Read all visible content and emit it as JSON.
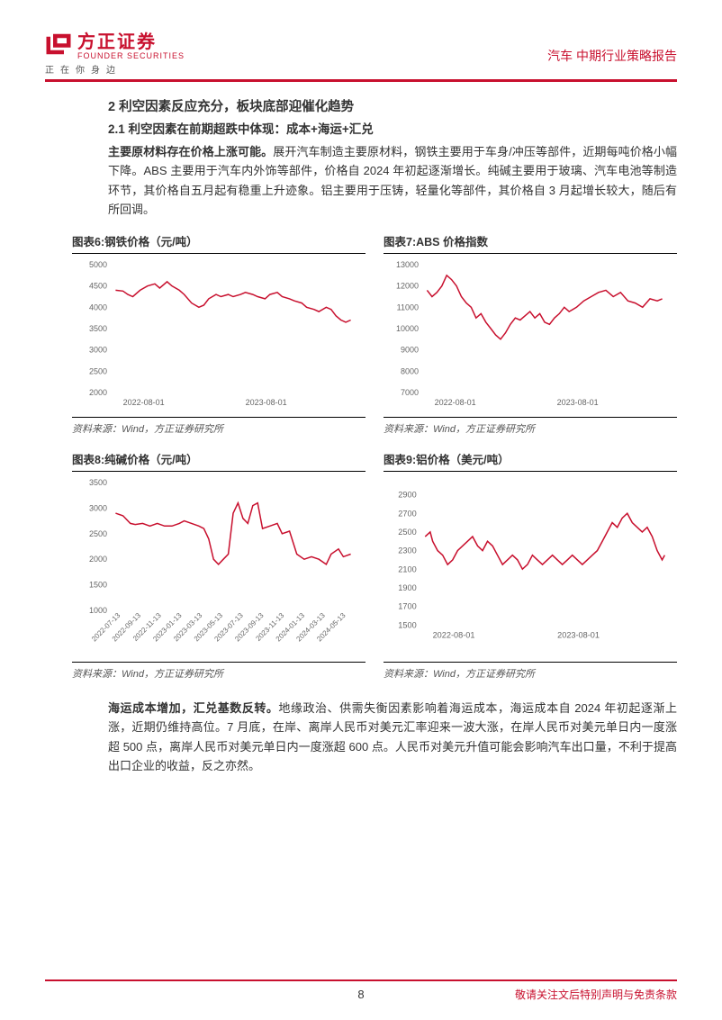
{
  "logo": {
    "cn": "方正证券",
    "en": "FOUNDER SECURITIES",
    "slogan": "正在你身边",
    "mark_color": "#c8102e"
  },
  "header_right": "汽车  中期行业策略报告",
  "section_title": "2 利空因素反应充分，板块底部迎催化趋势",
  "subsection_title": "2.1 利空因素在前期超跌中体现：成本+海运+汇兑",
  "paragraph1_bold": "主要原材料存在价格上涨可能。",
  "paragraph1_rest": "展开汽车制造主要原材料，钢铁主要用于车身/冲压等部件，近期每吨价格小幅下降。ABS 主要用于汽车内外饰等部件，价格自 2024 年初起逐渐增长。纯碱主要用于玻璃、汽车电池等制造环节，其价格自五月起有稳重上升迹象。铝主要用于压铸，轻量化等部件，其价格自 3 月起增长较大，随后有所回调。",
  "paragraph2_bold": "海运成本增加，汇兑基数反转。",
  "paragraph2_rest": "地缘政治、供需失衡因素影响着海运成本，海运成本自 2024 年初起逐渐上涨，近期仍维持高位。7 月底，在岸、离岸人民币对美元汇率迎来一波大涨，在岸人民币对美元单日内一度涨超 500 点，离岸人民币对美元单日内一度涨超 600 点。人民币对美元升值可能会影响汽车出口量，不利于提高出口企业的收益，反之亦然。",
  "source_text": "资料来源：Wind，方正证券研究所",
  "page_number": "8",
  "footer_disclaimer": "敬请关注文后特别声明与免责条款",
  "chart6": {
    "title": "图表6:钢铁价格（元/吨）",
    "type": "line",
    "line_color": "#c8102e",
    "background_color": "#ffffff",
    "ylim": [
      2000,
      5000
    ],
    "ytick_step": 500,
    "yticks": [
      2000,
      2500,
      3000,
      3500,
      4000,
      4500,
      5000
    ],
    "xticks": [
      "2022-08-01",
      "2023-08-01"
    ],
    "xtick_positions": [
      0.05,
      0.55
    ],
    "line_width": 1.5,
    "data": [
      [
        0.02,
        4400
      ],
      [
        0.05,
        4380
      ],
      [
        0.07,
        4300
      ],
      [
        0.09,
        4250
      ],
      [
        0.12,
        4400
      ],
      [
        0.15,
        4500
      ],
      [
        0.18,
        4550
      ],
      [
        0.2,
        4450
      ],
      [
        0.23,
        4600
      ],
      [
        0.25,
        4500
      ],
      [
        0.28,
        4400
      ],
      [
        0.3,
        4300
      ],
      [
        0.33,
        4100
      ],
      [
        0.36,
        4000
      ],
      [
        0.38,
        4050
      ],
      [
        0.4,
        4200
      ],
      [
        0.43,
        4300
      ],
      [
        0.45,
        4250
      ],
      [
        0.48,
        4300
      ],
      [
        0.5,
        4250
      ],
      [
        0.53,
        4300
      ],
      [
        0.55,
        4350
      ],
      [
        0.58,
        4300
      ],
      [
        0.6,
        4250
      ],
      [
        0.63,
        4200
      ],
      [
        0.65,
        4300
      ],
      [
        0.68,
        4350
      ],
      [
        0.7,
        4250
      ],
      [
        0.73,
        4200
      ],
      [
        0.75,
        4150
      ],
      [
        0.78,
        4100
      ],
      [
        0.8,
        4000
      ],
      [
        0.83,
        3950
      ],
      [
        0.85,
        3900
      ],
      [
        0.88,
        4000
      ],
      [
        0.9,
        3950
      ],
      [
        0.92,
        3800
      ],
      [
        0.94,
        3700
      ],
      [
        0.96,
        3650
      ],
      [
        0.98,
        3700
      ]
    ]
  },
  "chart7": {
    "title": "图表7:ABS 价格指数",
    "type": "line",
    "line_color": "#c8102e",
    "background_color": "#ffffff",
    "ylim": [
      7000,
      13000
    ],
    "ytick_step": 1000,
    "yticks": [
      7000,
      8000,
      9000,
      10000,
      11000,
      12000,
      13000
    ],
    "xticks": [
      "2022-08-01",
      "2023-08-01"
    ],
    "xtick_positions": [
      0.05,
      0.55
    ],
    "line_width": 1.5,
    "data": [
      [
        0.02,
        11800
      ],
      [
        0.04,
        11500
      ],
      [
        0.06,
        11700
      ],
      [
        0.08,
        12000
      ],
      [
        0.1,
        12500
      ],
      [
        0.12,
        12300
      ],
      [
        0.14,
        12000
      ],
      [
        0.16,
        11500
      ],
      [
        0.18,
        11200
      ],
      [
        0.2,
        11000
      ],
      [
        0.22,
        10500
      ],
      [
        0.24,
        10700
      ],
      [
        0.26,
        10300
      ],
      [
        0.28,
        10000
      ],
      [
        0.3,
        9700
      ],
      [
        0.32,
        9500
      ],
      [
        0.34,
        9800
      ],
      [
        0.36,
        10200
      ],
      [
        0.38,
        10500
      ],
      [
        0.4,
        10400
      ],
      [
        0.42,
        10600
      ],
      [
        0.44,
        10800
      ],
      [
        0.46,
        10500
      ],
      [
        0.48,
        10700
      ],
      [
        0.5,
        10300
      ],
      [
        0.52,
        10200
      ],
      [
        0.54,
        10500
      ],
      [
        0.56,
        10700
      ],
      [
        0.58,
        11000
      ],
      [
        0.6,
        10800
      ],
      [
        0.63,
        11000
      ],
      [
        0.66,
        11300
      ],
      [
        0.69,
        11500
      ],
      [
        0.72,
        11700
      ],
      [
        0.75,
        11800
      ],
      [
        0.78,
        11500
      ],
      [
        0.81,
        11700
      ],
      [
        0.84,
        11300
      ],
      [
        0.87,
        11200
      ],
      [
        0.9,
        11000
      ],
      [
        0.93,
        11400
      ],
      [
        0.96,
        11300
      ],
      [
        0.98,
        11400
      ]
    ]
  },
  "chart8": {
    "title": "图表8:纯碱价格（元/吨）",
    "type": "line",
    "line_color": "#c8102e",
    "background_color": "#ffffff",
    "ylim": [
      1000,
      3500
    ],
    "ytick_step": 500,
    "yticks": [
      1000,
      1500,
      2000,
      2500,
      3000,
      3500
    ],
    "xticks": [
      "2022-07-13",
      "2022-09-13",
      "2022-11-13",
      "2023-01-13",
      "2023-03-13",
      "2023-05-13",
      "2023-07-13",
      "2023-09-13",
      "2023-11-13",
      "2024-01-13",
      "2024-03-13",
      "2024-05-13"
    ],
    "line_width": 1.5,
    "data": [
      [
        0.02,
        2900
      ],
      [
        0.05,
        2850
      ],
      [
        0.08,
        2700
      ],
      [
        0.1,
        2680
      ],
      [
        0.13,
        2700
      ],
      [
        0.16,
        2650
      ],
      [
        0.19,
        2700
      ],
      [
        0.22,
        2650
      ],
      [
        0.25,
        2650
      ],
      [
        0.28,
        2700
      ],
      [
        0.3,
        2750
      ],
      [
        0.33,
        2700
      ],
      [
        0.36,
        2650
      ],
      [
        0.38,
        2600
      ],
      [
        0.4,
        2400
      ],
      [
        0.42,
        2000
      ],
      [
        0.44,
        1900
      ],
      [
        0.46,
        2000
      ],
      [
        0.48,
        2100
      ],
      [
        0.5,
        2900
      ],
      [
        0.52,
        3100
      ],
      [
        0.54,
        2800
      ],
      [
        0.56,
        2700
      ],
      [
        0.58,
        3050
      ],
      [
        0.6,
        3100
      ],
      [
        0.62,
        2600
      ],
      [
        0.65,
        2650
      ],
      [
        0.68,
        2700
      ],
      [
        0.7,
        2500
      ],
      [
        0.73,
        2550
      ],
      [
        0.76,
        2100
      ],
      [
        0.79,
        2000
      ],
      [
        0.82,
        2050
      ],
      [
        0.85,
        2000
      ],
      [
        0.88,
        1900
      ],
      [
        0.9,
        2100
      ],
      [
        0.93,
        2200
      ],
      [
        0.95,
        2050
      ],
      [
        0.98,
        2100
      ]
    ]
  },
  "chart9": {
    "title": "图表9:铝价格（美元/吨）",
    "type": "line",
    "line_color": "#c8102e",
    "background_color": "#ffffff",
    "ylim": [
      1500,
      2900
    ],
    "ytick_step": 200,
    "yticks": [
      1500,
      1700,
      1900,
      2100,
      2300,
      2500,
      2700,
      2900
    ],
    "xticks": [
      "2022-08-01",
      "2023-08-01"
    ],
    "xtick_positions": [
      0.05,
      0.55
    ],
    "line_width": 1.5,
    "data": [
      [
        0.02,
        2450
      ],
      [
        0.04,
        2500
      ],
      [
        0.05,
        2400
      ],
      [
        0.07,
        2300
      ],
      [
        0.09,
        2250
      ],
      [
        0.11,
        2150
      ],
      [
        0.13,
        2200
      ],
      [
        0.15,
        2300
      ],
      [
        0.17,
        2350
      ],
      [
        0.19,
        2400
      ],
      [
        0.21,
        2450
      ],
      [
        0.23,
        2350
      ],
      [
        0.25,
        2300
      ],
      [
        0.27,
        2400
      ],
      [
        0.29,
        2350
      ],
      [
        0.31,
        2250
      ],
      [
        0.33,
        2150
      ],
      [
        0.35,
        2200
      ],
      [
        0.37,
        2250
      ],
      [
        0.39,
        2200
      ],
      [
        0.41,
        2100
      ],
      [
        0.43,
        2150
      ],
      [
        0.45,
        2250
      ],
      [
        0.47,
        2200
      ],
      [
        0.49,
        2150
      ],
      [
        0.51,
        2200
      ],
      [
        0.53,
        2250
      ],
      [
        0.55,
        2200
      ],
      [
        0.57,
        2150
      ],
      [
        0.59,
        2200
      ],
      [
        0.61,
        2250
      ],
      [
        0.63,
        2200
      ],
      [
        0.65,
        2150
      ],
      [
        0.67,
        2200
      ],
      [
        0.69,
        2250
      ],
      [
        0.71,
        2300
      ],
      [
        0.73,
        2400
      ],
      [
        0.75,
        2500
      ],
      [
        0.77,
        2600
      ],
      [
        0.79,
        2550
      ],
      [
        0.81,
        2650
      ],
      [
        0.83,
        2700
      ],
      [
        0.85,
        2600
      ],
      [
        0.87,
        2550
      ],
      [
        0.89,
        2500
      ],
      [
        0.91,
        2550
      ],
      [
        0.93,
        2450
      ],
      [
        0.95,
        2300
      ],
      [
        0.97,
        2200
      ],
      [
        0.98,
        2250
      ]
    ]
  }
}
